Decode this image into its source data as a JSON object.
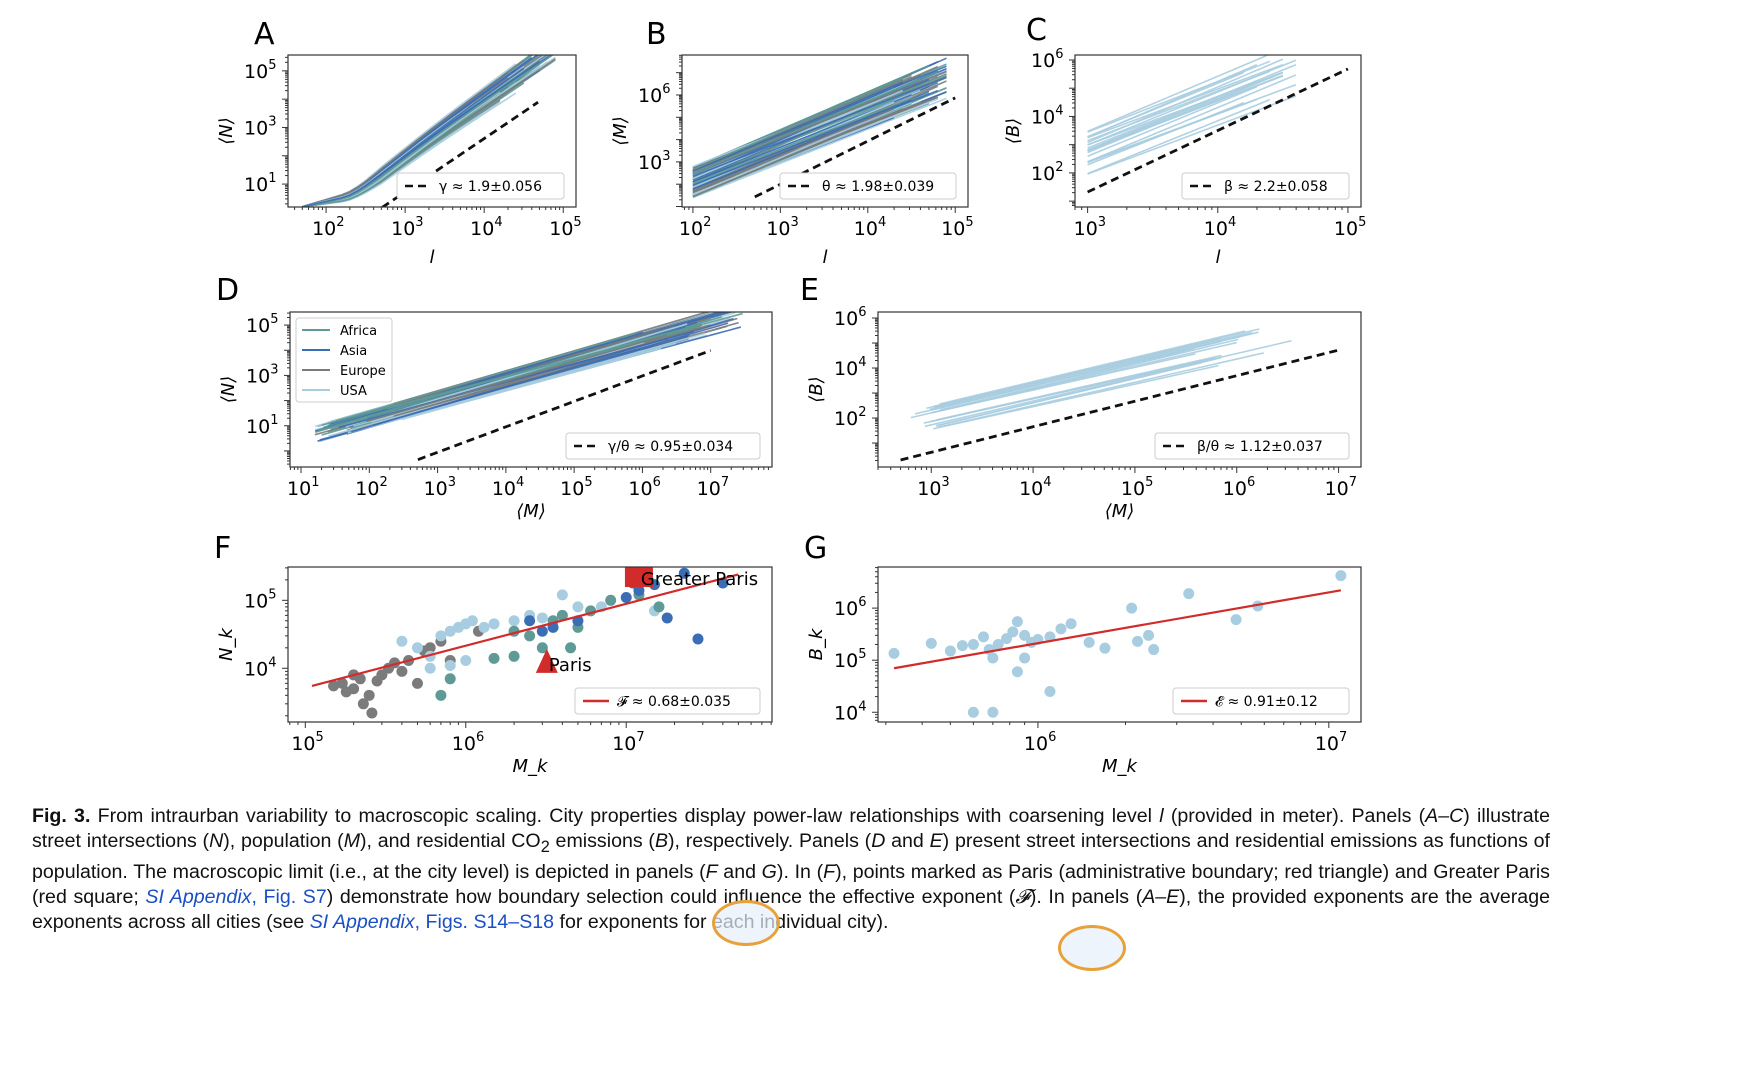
{
  "colors": {
    "Africa": "#5f9a96",
    "Asia": "#3a6db4",
    "Europe": "#7b7b7b",
    "USA": "#a8cde0",
    "fit_dashed": "#111111",
    "fit_red": "#d22b2b",
    "paris": "#d22b2b"
  },
  "chart_data": [
    {
      "panel": "A",
      "type": "line",
      "xlabel": "l",
      "ylabel": "⟨N⟩",
      "xscale": "log",
      "yscale": "log",
      "xlim": [
        33,
        145000
      ],
      "ylim": [
        1.55,
        363000
      ],
      "xticks": [
        2,
        3,
        4,
        5
      ],
      "yticks": [
        1,
        3,
        5
      ],
      "fit": {
        "label": "γ ≈ 1.9±0.056",
        "style": "dashed",
        "points": [
          [
            513,
            1.5
          ],
          [
            48000,
            7800
          ]
        ]
      },
      "legend_placement": "lower-right"
    },
    {
      "panel": "B",
      "type": "line",
      "xlabel": "l",
      "ylabel": "⟨M⟩",
      "xscale": "log",
      "yscale": "log",
      "xlim": [
        75,
        140000
      ],
      "ylim": [
        9.5,
        62000000
      ],
      "xticks": [
        2,
        3,
        4,
        5
      ],
      "yticks": [
        3,
        6
      ],
      "fit": {
        "label": "θ ≈ 1.98±0.039",
        "style": "dashed",
        "points": [
          [
            510,
            27
          ],
          [
            100000,
            740000
          ]
        ]
      },
      "legend_placement": "lower-right"
    },
    {
      "panel": "C",
      "type": "line",
      "xlabel": "l",
      "ylabel": "⟨B⟩",
      "xscale": "log",
      "yscale": "log",
      "xlim": [
        800,
        126000
      ],
      "ylim": [
        6.2,
        1500000
      ],
      "xticks": [
        3,
        4,
        5
      ],
      "yticks": [
        2,
        4,
        6
      ],
      "fit": {
        "label": "β ≈ 2.2±0.058",
        "style": "dashed",
        "points": [
          [
            1000,
            21
          ],
          [
            100000,
            480000
          ]
        ]
      },
      "legend_placement": "lower-right"
    },
    {
      "panel": "D",
      "type": "line",
      "xlabel": "⟨M⟩",
      "ylabel": "⟨N⟩",
      "xscale": "log",
      "yscale": "log",
      "xlim": [
        6.9,
        79000000
      ],
      "ylim": [
        0.23,
        331000
      ],
      "xticks": [
        1,
        2,
        3,
        4,
        5,
        6,
        7
      ],
      "yticks": [
        1,
        3,
        5
      ],
      "fit": {
        "label": "γ/θ ≈ 0.95±0.034",
        "style": "dashed",
        "points": [
          [
            515,
            0.45
          ],
          [
            10000000,
            9800
          ]
        ]
      },
      "legend_placement": "lower-right",
      "series_legend": [
        "Africa",
        "Asia",
        "Europe",
        "USA"
      ]
    },
    {
      "panel": "E",
      "type": "line",
      "xlabel": "⟨M⟩",
      "ylabel": "⟨B⟩",
      "xscale": "log",
      "yscale": "log",
      "xlim": [
        300,
        16600000
      ],
      "ylim": [
        1.1,
        1740000
      ],
      "xticks": [
        3,
        4,
        5,
        6,
        7
      ],
      "yticks": [
        2,
        4,
        6
      ],
      "fit": {
        "label": "β/θ ≈ 1.12±0.037",
        "style": "dashed",
        "points": [
          [
            500,
            2.1
          ],
          [
            10000000,
            52000
          ]
        ]
      },
      "legend_placement": "lower-right"
    },
    {
      "panel": "F",
      "type": "scatter",
      "xlabel": "M_k",
      "ylabel": "N_k",
      "xscale": "log",
      "yscale": "log",
      "xlim": [
        78000,
        81000000
      ],
      "ylim": [
        1620,
        309000
      ],
      "xticks": [
        5,
        6,
        7
      ],
      "yticks": [
        4,
        5
      ],
      "fit": {
        "label": "𝓕 ≈ 0.68±0.035",
        "style": "solid",
        "points": [
          [
            110000,
            5500
          ],
          [
            50000000,
            240000
          ]
        ]
      },
      "legend_placement": "lower-right",
      "series": [
        {
          "name": "Europe",
          "points": [
            [
              170000,
              6000
            ],
            [
              200000,
              5000
            ],
            [
              220000,
              7000
            ],
            [
              250000,
              4000
            ],
            [
              260000,
              2200
            ],
            [
              300000,
              8000
            ],
            [
              330000,
              10000
            ],
            [
              360000,
              12000
            ],
            [
              400000,
              9000
            ],
            [
              440000,
              13000
            ],
            [
              200000,
              8000
            ],
            [
              180000,
              4500
            ],
            [
              230000,
              3000
            ],
            [
              500000,
              6000
            ],
            [
              600000,
              20000
            ],
            [
              700000,
              25000
            ],
            [
              800000,
              13000
            ],
            [
              1200000,
              35000
            ],
            [
              550000,
              18000
            ],
            [
              150000,
              5500
            ],
            [
              280000,
              6500
            ]
          ]
        },
        {
          "name": "USA",
          "points": [
            [
              400000,
              25000
            ],
            [
              500000,
              20000
            ],
            [
              600000,
              15000
            ],
            [
              700000,
              30000
            ],
            [
              800000,
              35000
            ],
            [
              900000,
              40000
            ],
            [
              1000000,
              45000
            ],
            [
              1100000,
              50000
            ],
            [
              1300000,
              40000
            ],
            [
              1500000,
              45000
            ],
            [
              2000000,
              50000
            ],
            [
              2500000,
              60000
            ],
            [
              3000000,
              55000
            ],
            [
              4000000,
              120000
            ],
            [
              5000000,
              80000
            ],
            [
              7000000,
              80000
            ],
            [
              15000000,
              70000
            ],
            [
              800000,
              11000
            ],
            [
              1000000,
              13000
            ],
            [
              600000,
              10000
            ]
          ]
        },
        {
          "name": "Africa",
          "points": [
            [
              800000,
              7000
            ],
            [
              1500000,
              14000
            ],
            [
              2000000,
              35000
            ],
            [
              2500000,
              30000
            ],
            [
              3000000,
              20000
            ],
            [
              3500000,
              50000
            ],
            [
              4000000,
              60000
            ],
            [
              4500000,
              20000
            ],
            [
              5000000,
              40000
            ],
            [
              6000000,
              70000
            ],
            [
              8000000,
              100000
            ],
            [
              12000000,
              120000
            ],
            [
              16000000,
              80000
            ],
            [
              2000000,
              15000
            ],
            [
              700000,
              4000
            ]
          ]
        },
        {
          "name": "Asia",
          "points": [
            [
              2500000,
              50000
            ],
            [
              3000000,
              35000
            ],
            [
              3500000,
              40000
            ],
            [
              5000000,
              50000
            ],
            [
              10000000,
              110000
            ],
            [
              12000000,
              140000
            ],
            [
              15000000,
              170000
            ],
            [
              23000000,
              250000
            ],
            [
              18000000,
              55000
            ],
            [
              28000000,
              27000
            ],
            [
              40000000,
              180000
            ],
            [
              11000000,
              180000
            ]
          ]
        }
      ],
      "annotations": [
        {
          "label": "Paris",
          "marker": "triangle",
          "point": [
            3200000,
            12000
          ]
        },
        {
          "label": "Greater Paris",
          "marker": "square",
          "point": [
            12000000,
            220000
          ]
        }
      ]
    },
    {
      "panel": "G",
      "type": "scatter",
      "xlabel": "M_k",
      "ylabel": "B_k",
      "xscale": "log",
      "yscale": "log",
      "xlim": [
        282000,
        12900000
      ],
      "ylim": [
        6500,
        6160000
      ],
      "xticks": [
        6,
        7
      ],
      "yticks": [
        4,
        5,
        6
      ],
      "fit": {
        "label": "𝓔 ≈ 0.91±0.12",
        "style": "solid",
        "points": [
          [
            320000,
            70000
          ],
          [
            11000000,
            2200000
          ]
        ]
      },
      "legend_placement": "lower-right",
      "series": [
        {
          "name": "USA",
          "points": [
            [
              320000,
              135000
            ],
            [
              430000,
              210000
            ],
            [
              500000,
              150000
            ],
            [
              550000,
              190000
            ],
            [
              600000,
              200000
            ],
            [
              650000,
              280000
            ],
            [
              700000,
              110000
            ],
            [
              730000,
              200000
            ],
            [
              780000,
              260000
            ],
            [
              820000,
              350000
            ],
            [
              850000,
              550000
            ],
            [
              900000,
              300000
            ],
            [
              950000,
              220000
            ],
            [
              1000000,
              250000
            ],
            [
              1100000,
              280000
            ],
            [
              1200000,
              400000
            ],
            [
              1300000,
              500000
            ],
            [
              1500000,
              220000
            ],
            [
              1700000,
              170000
            ],
            [
              2100000,
              1000000
            ],
            [
              2200000,
              230000
            ],
            [
              2400000,
              300000
            ],
            [
              2500000,
              160000
            ],
            [
              3300000,
              1900000
            ],
            [
              4800000,
              600000
            ],
            [
              5700000,
              1100000
            ],
            [
              11000000,
              4200000
            ],
            [
              850000,
              60000
            ],
            [
              1100000,
              25000
            ],
            [
              600000,
              10000
            ],
            [
              700000,
              10000
            ],
            [
              680000,
              160000
            ],
            [
              900000,
              110000
            ]
          ]
        }
      ]
    }
  ],
  "caption": [
    {
      "t": "Fig. 3.",
      "s": "b"
    },
    {
      "t": "  From intraurban variability to macroscopic scaling. City properties display power-law relationships with coarsening level "
    },
    {
      "t": "l",
      "s": "i"
    },
    {
      "t": " (provided in meter). Panels ("
    },
    {
      "t": "A–C",
      "s": "i"
    },
    {
      "t": ") illustrate street intersections ("
    },
    {
      "t": "N",
      "s": "i"
    },
    {
      "t": "), population ("
    },
    {
      "t": "M",
      "s": "i"
    },
    {
      "t": "), and residential CO"
    },
    {
      "t": "2",
      "s": "sub"
    },
    {
      "t": " emissions ("
    },
    {
      "t": "B",
      "s": "i"
    },
    {
      "t": "), respectively. Panels ("
    },
    {
      "t": "D",
      "s": "i"
    },
    {
      "t": " and "
    },
    {
      "t": "E",
      "s": "i"
    },
    {
      "t": ") present street intersections and residential emissions as functions of population. The macroscopic limit (i.e., at the city level) is depicted in panels ("
    },
    {
      "t": "F",
      "s": "i"
    },
    {
      "t": " and "
    },
    {
      "t": "G",
      "s": "i"
    },
    {
      "t": "). In ("
    },
    {
      "t": "F",
      "s": "i"
    },
    {
      "t": "), points marked as Paris (administrative boundary; red triangle) and Greater Paris (red square; "
    },
    {
      "t": "SI Appendix",
      "s": "link"
    },
    {
      "t": ", Fig. S7",
      "s": "link2"
    },
    {
      "t": ") demonstrate how boundary selection could influence the effective exponent ("
    },
    {
      "t": "𝓕",
      "s": "i"
    },
    {
      "t": "). In panels ("
    },
    {
      "t": "A–E",
      "s": "i"
    },
    {
      "t": "), the provided exponents are the average exponents across all cities (see "
    },
    {
      "t": "SI Appendix",
      "s": "link"
    },
    {
      "t": ", Figs. S14–S18",
      "s": "link2"
    },
    {
      "t": " for exponents for each individual city)."
    }
  ]
}
